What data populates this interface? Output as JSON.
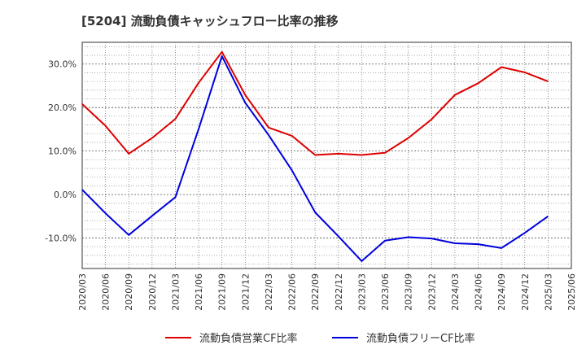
{
  "chart_data": {
    "type": "line",
    "title": "[5204]  流動負債キャッシュフロー比率の推移",
    "x": [
      "2020/03",
      "2020/06",
      "2020/09",
      "2020/12",
      "2021/03",
      "2021/06",
      "2021/09",
      "2021/12",
      "2022/03",
      "2022/06",
      "2022/09",
      "2022/12",
      "2023/03",
      "2023/06",
      "2023/09",
      "2023/12",
      "2024/03",
      "2024/06",
      "2024/09",
      "2024/12",
      "2025/03",
      "2025/06"
    ],
    "y_ticks": [
      "30.0%",
      "20.0%",
      "10.0%",
      "0.0%",
      "-10.0%"
    ],
    "ylim": [
      -17,
      35
    ],
    "grid": true,
    "legend_position": "bottom",
    "series": [
      {
        "name": "流動負債営業CF比率",
        "color": "#dd0000",
        "values": [
          20.8,
          15.8,
          9.4,
          13.0,
          17.4,
          25.7,
          32.8,
          22.9,
          15.4,
          13.5,
          9.1,
          9.4,
          9.1,
          9.6,
          13.0,
          17.3,
          22.9,
          25.6,
          29.3,
          28.1,
          26.0,
          null
        ]
      },
      {
        "name": "流動負債フリーCF比率",
        "color": "#0000dd",
        "values": [
          1.1,
          -4.3,
          -9.3,
          -4.9,
          -0.6,
          15.1,
          31.8,
          21.1,
          13.7,
          5.6,
          -4.1,
          -9.6,
          -15.3,
          -10.6,
          -9.8,
          -10.1,
          -11.2,
          -11.4,
          -12.3,
          -8.8,
          -5.0,
          null
        ]
      }
    ]
  }
}
